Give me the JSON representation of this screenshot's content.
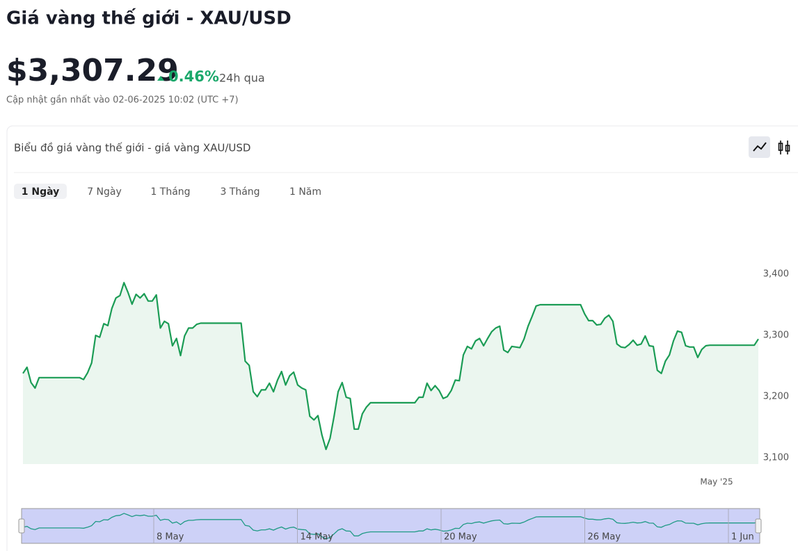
{
  "header": {
    "title": "Giá vàng thế giới - XAU/USD",
    "price": "$3,307.29",
    "change": "0.46%",
    "change_period": "24h qua",
    "updated": "Cập nhật gần nhất vào 02-06-2025 10:02 (UTC +7)"
  },
  "tabs": [
    "1 Ngày",
    "7 Ngày",
    "1 Tháng",
    "3 Tháng",
    "1 Năm"
  ],
  "chart_data": {
    "type": "line",
    "title": "Biểu đồ giá vàng thế giới - giá vàng XAU/USD",
    "color": "#1b9c55",
    "area_color": "#ebf6ef",
    "values": [
      3238,
      3248,
      3223,
      3214,
      3231,
      3231,
      3231,
      3231,
      3231,
      3231,
      3231,
      3231,
      3231,
      3231,
      3231,
      3228,
      3239,
      3255,
      3300,
      3297,
      3319,
      3316,
      3344,
      3361,
      3365,
      3386,
      3370,
      3351,
      3367,
      3361,
      3368,
      3356,
      3356,
      3366,
      3312,
      3323,
      3319,
      3283,
      3295,
      3267,
      3299,
      3312,
      3312,
      3318,
      3320,
      3320,
      3320,
      3320,
      3320,
      3320,
      3320,
      3320,
      3320,
      3320,
      3320,
      3258,
      3251,
      3208,
      3200,
      3211,
      3211,
      3222,
      3208,
      3227,
      3241,
      3219,
      3234,
      3240,
      3219,
      3214,
      3211,
      3168,
      3162,
      3169,
      3137,
      3114,
      3132,
      3168,
      3208,
      3223,
      3199,
      3197,
      3147,
      3147,
      3172,
      3183,
      3190,
      3190,
      3190,
      3190,
      3190,
      3190,
      3190,
      3190,
      3190,
      3190,
      3190,
      3190,
      3199,
      3199,
      3222,
      3210,
      3218,
      3210,
      3197,
      3200,
      3210,
      3227,
      3226,
      3268,
      3282,
      3278,
      3291,
      3295,
      3283,
      3295,
      3306,
      3312,
      3315,
      3276,
      3272,
      3282,
      3281,
      3280,
      3294,
      3315,
      3331,
      3348,
      3350,
      3350,
      3350,
      3350,
      3350,
      3350,
      3350,
      3350,
      3350,
      3350,
      3350,
      3335,
      3324,
      3324,
      3317,
      3318,
      3328,
      3333,
      3323,
      3286,
      3281,
      3280,
      3285,
      3292,
      3284,
      3286,
      3299,
      3283,
      3282,
      3243,
      3238,
      3258,
      3268,
      3291,
      3307,
      3305,
      3283,
      3281,
      3281,
      3264,
      3277,
      3283,
      3284,
      3284,
      3284,
      3284,
      3284,
      3284,
      3284,
      3284,
      3284,
      3284,
      3284,
      3284,
      3294
    ],
    "ylim": [
      3090,
      3400
    ],
    "yticks": [
      {
        "value": 3100,
        "label": "3,100"
      },
      {
        "value": 3200,
        "label": "3,200"
      },
      {
        "value": 3300,
        "label": "3,300"
      },
      {
        "value": 3400,
        "label": "3,400"
      }
    ],
    "x_axis_labels": [
      "May '25"
    ],
    "navigator_labels": [
      "8 May",
      "14 May",
      "20 May",
      "26 May",
      "1 Jun"
    ]
  }
}
